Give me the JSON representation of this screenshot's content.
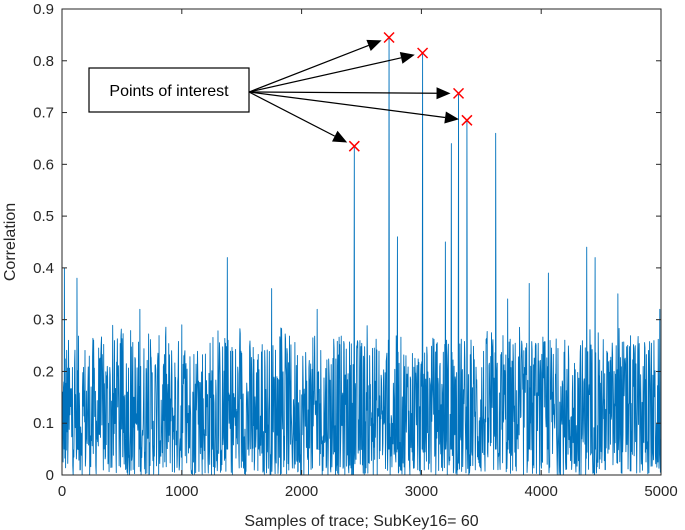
{
  "chart_data": {
    "type": "line",
    "title": "",
    "xlabel": "Samples of trace; SubKey16= 60",
    "ylabel": "Correlation",
    "xlim": [
      0,
      5000
    ],
    "ylim": [
      0,
      0.9
    ],
    "xticks": [
      0,
      1000,
      2000,
      3000,
      4000,
      5000
    ],
    "yticks": [
      0,
      0.1,
      0.2,
      0.3,
      0.4,
      0.5,
      0.6,
      0.7,
      0.8,
      0.9
    ],
    "grid": false,
    "legend": "none",
    "line_color": "#0072BD",
    "marker_color": "#FF0000",
    "series": [
      {
        "x_range": [
          0,
          5000
        ],
        "noise_envelope": [
          0,
          0.27
        ],
        "peaks": [
          {
            "x": 20,
            "y": 0.4
          },
          {
            "x": 125,
            "y": 0.38
          },
          {
            "x": 650,
            "y": 0.32
          },
          {
            "x": 1000,
            "y": 0.29
          },
          {
            "x": 1380,
            "y": 0.42
          },
          {
            "x": 1750,
            "y": 0.36
          },
          {
            "x": 2130,
            "y": 0.32
          },
          {
            "x": 2440,
            "y": 0.635
          },
          {
            "x": 2730,
            "y": 0.845
          },
          {
            "x": 2800,
            "y": 0.46
          },
          {
            "x": 3010,
            "y": 0.815
          },
          {
            "x": 3200,
            "y": 0.45
          },
          {
            "x": 3250,
            "y": 0.64
          },
          {
            "x": 3310,
            "y": 0.737
          },
          {
            "x": 3380,
            "y": 0.685
          },
          {
            "x": 3620,
            "y": 0.66
          },
          {
            "x": 3720,
            "y": 0.34
          },
          {
            "x": 3900,
            "y": 0.37
          },
          {
            "x": 4060,
            "y": 0.39
          },
          {
            "x": 4380,
            "y": 0.44
          },
          {
            "x": 4450,
            "y": 0.42
          },
          {
            "x": 4640,
            "y": 0.35
          },
          {
            "x": 4990,
            "y": 0.32
          }
        ]
      }
    ],
    "points_of_interest": [
      {
        "x": 2440,
        "y": 0.635
      },
      {
        "x": 2730,
        "y": 0.845
      },
      {
        "x": 3010,
        "y": 0.815
      },
      {
        "x": 3310,
        "y": 0.737
      },
      {
        "x": 3380,
        "y": 0.685
      }
    ],
    "annotation": {
      "text": "Points of interest"
    }
  }
}
